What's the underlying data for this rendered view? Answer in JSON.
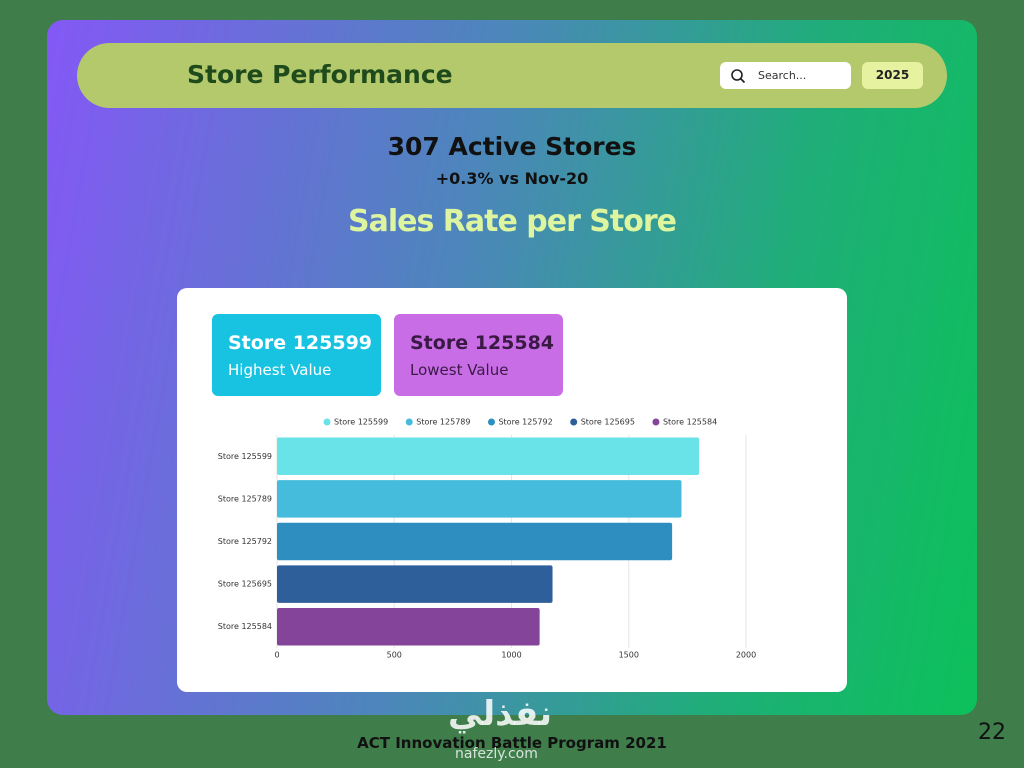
{
  "header": {
    "title": "Store Performance",
    "search_placeholder": "Search...",
    "year": "2025"
  },
  "summary": {
    "headline": "307 Active Stores",
    "change": "+0.3% vs Nov-20",
    "section_title": "Sales Rate per Store"
  },
  "highlights": [
    {
      "store": "Store 125599",
      "label": "Highest Value"
    },
    {
      "store": "Store 125584",
      "label": "Lowest Value"
    }
  ],
  "chart_data": {
    "type": "bar",
    "orientation": "horizontal",
    "categories": [
      "Store 125599",
      "Store 125789",
      "Store 125792",
      "Store 125695",
      "Store 125584"
    ],
    "values": [
      1800,
      1725,
      1685,
      1175,
      1120
    ],
    "colors": [
      "#6ae3e8",
      "#45bcdc",
      "#2f8ec0",
      "#2f5f9a",
      "#83449a"
    ],
    "xlim": [
      0,
      2000
    ],
    "xticks": [
      0,
      500,
      1000,
      1500,
      2000
    ],
    "grid": true,
    "legend": "top"
  },
  "footer": {
    "program": "ACT Innovation Battle Program 2021",
    "page": "22",
    "watermark_arabic": "نفذلي",
    "watermark": "nafezly.com"
  }
}
